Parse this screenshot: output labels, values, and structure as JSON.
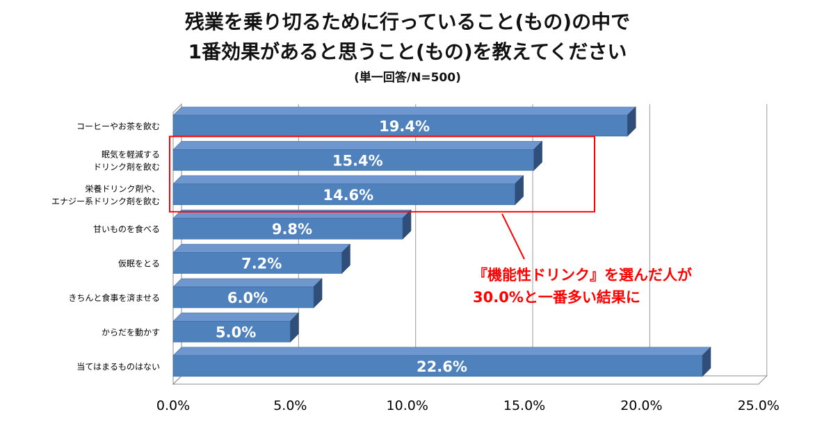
{
  "header": {
    "title_line1": "残業を乗り切るために行っていること(もの)の中で",
    "title_line2": "1番効果があると思うこと(もの)を教えてください",
    "subtitle": "(単一回答/N=500)"
  },
  "chart_data": {
    "type": "bar",
    "orientation": "horizontal",
    "style": "3d",
    "categories": [
      "コーヒーやお茶を飲む",
      "眠気を軽減する\nドリンク剤を飲む",
      "栄養ドリンク剤や、\nエナジー系ドリンク剤を飲む",
      "甘いものを食べる",
      "仮眠をとる",
      "きちんと食事を済ませる",
      "からだを動かす",
      "当てはまるものはない"
    ],
    "values": [
      19.4,
      15.4,
      14.6,
      9.8,
      7.2,
      6.0,
      5.0,
      22.6
    ],
    "data_labels": [
      "19.4%",
      "15.4%",
      "14.6%",
      "9.8%",
      "7.2%",
      "6.0%",
      "5.0%",
      "22.6%"
    ],
    "xlim": [
      0,
      25
    ],
    "x_ticks": [
      "0.0%",
      "5.0%",
      "10.0%",
      "15.0%",
      "20.0%",
      "25.0%"
    ],
    "grid": true,
    "bar_color": "#4F81BD",
    "highlight": {
      "categories_index": [
        1,
        2
      ],
      "box_color": "#FF0000",
      "annotation_line1": "『機能性ドリンク』を選んだ人が",
      "annotation_line2": "30.0%と一番多い結果に",
      "annotation_color": "#FF0000"
    }
  }
}
